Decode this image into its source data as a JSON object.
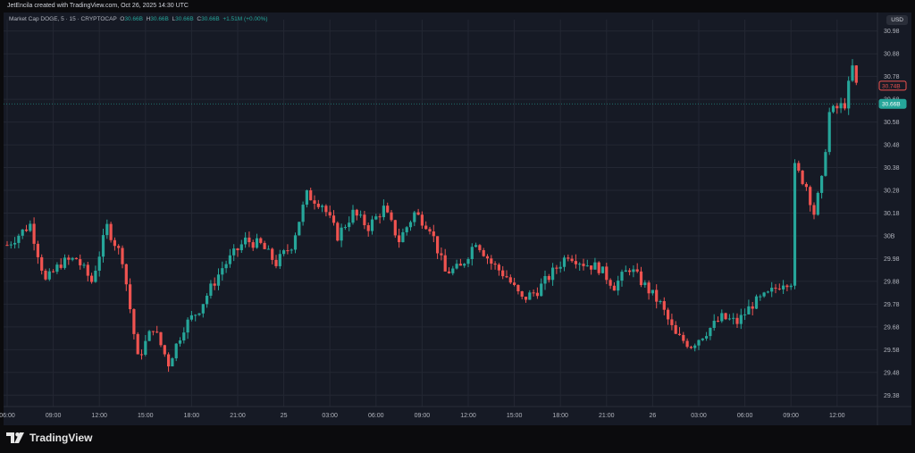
{
  "attribution": "JetEncila created with TradingView.com, Oct 26, 2025 14:30 UTC",
  "header": {
    "symbol": "Market Cap DOGE, 5 · 15 · CRYPTOCAP",
    "ohlc": {
      "open_label": "O",
      "open": "30.66B",
      "high_label": "H",
      "high": "30.66B",
      "low_label": "L",
      "low": "30.66B",
      "close_label": "C",
      "close": "30.66B",
      "change": "+1.51M (+0.00%)"
    },
    "currency": "USD"
  },
  "brand": "TradingView",
  "colors": {
    "up": "#26a69a",
    "down": "#ef5350",
    "background": "#161a25",
    "grid": "#232733",
    "axis_text": "#b2b5be"
  },
  "price_tags": [
    {
      "label": "30.74B",
      "value": 30.74,
      "style": "outline"
    },
    {
      "label": "30.66B",
      "value": 30.66,
      "style": "filled"
    }
  ],
  "chart_data": {
    "type": "candlestick",
    "title": "",
    "xlabel": "",
    "ylabel": "",
    "y_unit": "B USD",
    "ylim": [
      29.33,
      31.03
    ],
    "y_ticks": [
      {
        "value": 30.98,
        "label": "30.98"
      },
      {
        "value": 30.88,
        "label": "30.88"
      },
      {
        "value": 30.78,
        "label": "30.78"
      },
      {
        "value": 30.68,
        "label": "30.68"
      },
      {
        "value": 30.58,
        "label": "30.58"
      },
      {
        "value": 30.48,
        "label": "30.48"
      },
      {
        "value": 30.38,
        "label": "30.38"
      },
      {
        "value": 30.28,
        "label": "30.28"
      },
      {
        "value": 30.18,
        "label": "30.18"
      },
      {
        "value": 30.08,
        "label": "30B"
      },
      {
        "value": 29.98,
        "label": "29.98"
      },
      {
        "value": 29.88,
        "label": "29.88"
      },
      {
        "value": 29.78,
        "label": "29.78"
      },
      {
        "value": 29.68,
        "label": "29.68"
      },
      {
        "value": 29.58,
        "label": "29.58"
      },
      {
        "value": 29.48,
        "label": "29.48"
      },
      {
        "value": 29.38,
        "label": "29.38"
      }
    ],
    "x_ticks": [
      {
        "index": 0,
        "label": "06:00"
      },
      {
        "index": 12,
        "label": "09:00"
      },
      {
        "index": 24,
        "label": "12:00"
      },
      {
        "index": 36,
        "label": "15:00"
      },
      {
        "index": 48,
        "label": "18:00"
      },
      {
        "index": 60,
        "label": "21:00"
      },
      {
        "index": 72,
        "label": "25"
      },
      {
        "index": 84,
        "label": "03:00"
      },
      {
        "index": 96,
        "label": "06:00"
      },
      {
        "index": 108,
        "label": "09:00"
      },
      {
        "index": 120,
        "label": "12:00"
      },
      {
        "index": 132,
        "label": "15:00"
      },
      {
        "index": 144,
        "label": "18:00"
      },
      {
        "index": 156,
        "label": "21:00"
      },
      {
        "index": 168,
        "label": "26"
      },
      {
        "index": 180,
        "label": "03:00"
      },
      {
        "index": 192,
        "label": "06:00"
      },
      {
        "index": 204,
        "label": "09:00"
      },
      {
        "index": 216,
        "label": "12:00"
      }
    ],
    "anchors": [
      [
        0,
        30.04
      ],
      [
        6,
        30.13
      ],
      [
        10,
        29.88
      ],
      [
        14,
        29.96
      ],
      [
        18,
        29.98
      ],
      [
        22,
        29.88
      ],
      [
        26,
        30.12
      ],
      [
        30,
        29.98
      ],
      [
        34,
        29.54
      ],
      [
        38,
        29.68
      ],
      [
        42,
        29.52
      ],
      [
        46,
        29.68
      ],
      [
        50,
        29.76
      ],
      [
        56,
        29.94
      ],
      [
        62,
        30.06
      ],
      [
        66,
        30.04
      ],
      [
        70,
        29.96
      ],
      [
        74,
        30.04
      ],
      [
        78,
        30.26
      ],
      [
        82,
        30.22
      ],
      [
        86,
        30.08
      ],
      [
        90,
        30.18
      ],
      [
        94,
        30.12
      ],
      [
        98,
        30.2
      ],
      [
        102,
        30.06
      ],
      [
        106,
        30.18
      ],
      [
        110,
        30.12
      ],
      [
        114,
        29.92
      ],
      [
        118,
        29.94
      ],
      [
        122,
        30.06
      ],
      [
        126,
        29.96
      ],
      [
        130,
        29.9
      ],
      [
        134,
        29.8
      ],
      [
        138,
        29.84
      ],
      [
        142,
        29.92
      ],
      [
        146,
        30.0
      ],
      [
        150,
        29.96
      ],
      [
        154,
        29.94
      ],
      [
        158,
        29.86
      ],
      [
        162,
        29.94
      ],
      [
        166,
        29.86
      ],
      [
        170,
        29.78
      ],
      [
        174,
        29.64
      ],
      [
        178,
        29.6
      ],
      [
        182,
        29.66
      ],
      [
        186,
        29.72
      ],
      [
        190,
        29.7
      ],
      [
        194,
        29.78
      ],
      [
        198,
        29.82
      ],
      [
        202,
        29.88
      ],
      [
        204,
        29.88
      ],
      [
        205,
        30.38
      ],
      [
        208,
        30.3
      ],
      [
        210,
        30.18
      ],
      [
        212,
        30.32
      ],
      [
        214,
        30.62
      ],
      [
        216,
        30.64
      ],
      [
        218,
        30.66
      ],
      [
        220,
        30.82
      ],
      [
        221,
        30.74
      ]
    ]
  }
}
